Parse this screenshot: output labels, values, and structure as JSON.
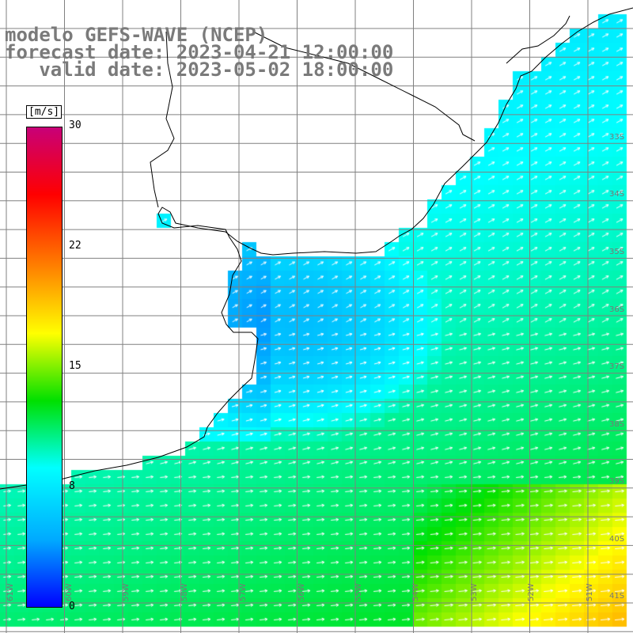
{
  "title": {
    "line1": "modelo GEFS-WAVE (NCEP)",
    "line2": "forecast date: 2023-04-21 12:00:00",
    "line3": "   valid date: 2023-05-02 18:00:00"
  },
  "colorbar": {
    "units": "[m/s]",
    "min": 0,
    "max": 30,
    "ticks": [
      "30",
      "22",
      "15",
      "8",
      "0"
    ],
    "colors": [
      "#0000ff",
      "#00aaff",
      "#00ffff",
      "#00e000",
      "#ffff00",
      "#ff8000",
      "#ff0000",
      "#c80078"
    ]
  },
  "map": {
    "lat_labels": [
      "33S",
      "34S",
      "35S",
      "36S",
      "37S",
      "38S",
      "39S",
      "40S",
      "41S"
    ],
    "lon_labels": [
      "61W",
      "60W",
      "59W",
      "58W",
      "57W",
      "56W",
      "55W",
      "54W",
      "53W",
      "52W",
      "51W"
    ],
    "land_color": "#ffffff",
    "grid_color": "#808080",
    "coast_color": "#000000",
    "arrow_color": "#ffffff"
  }
}
